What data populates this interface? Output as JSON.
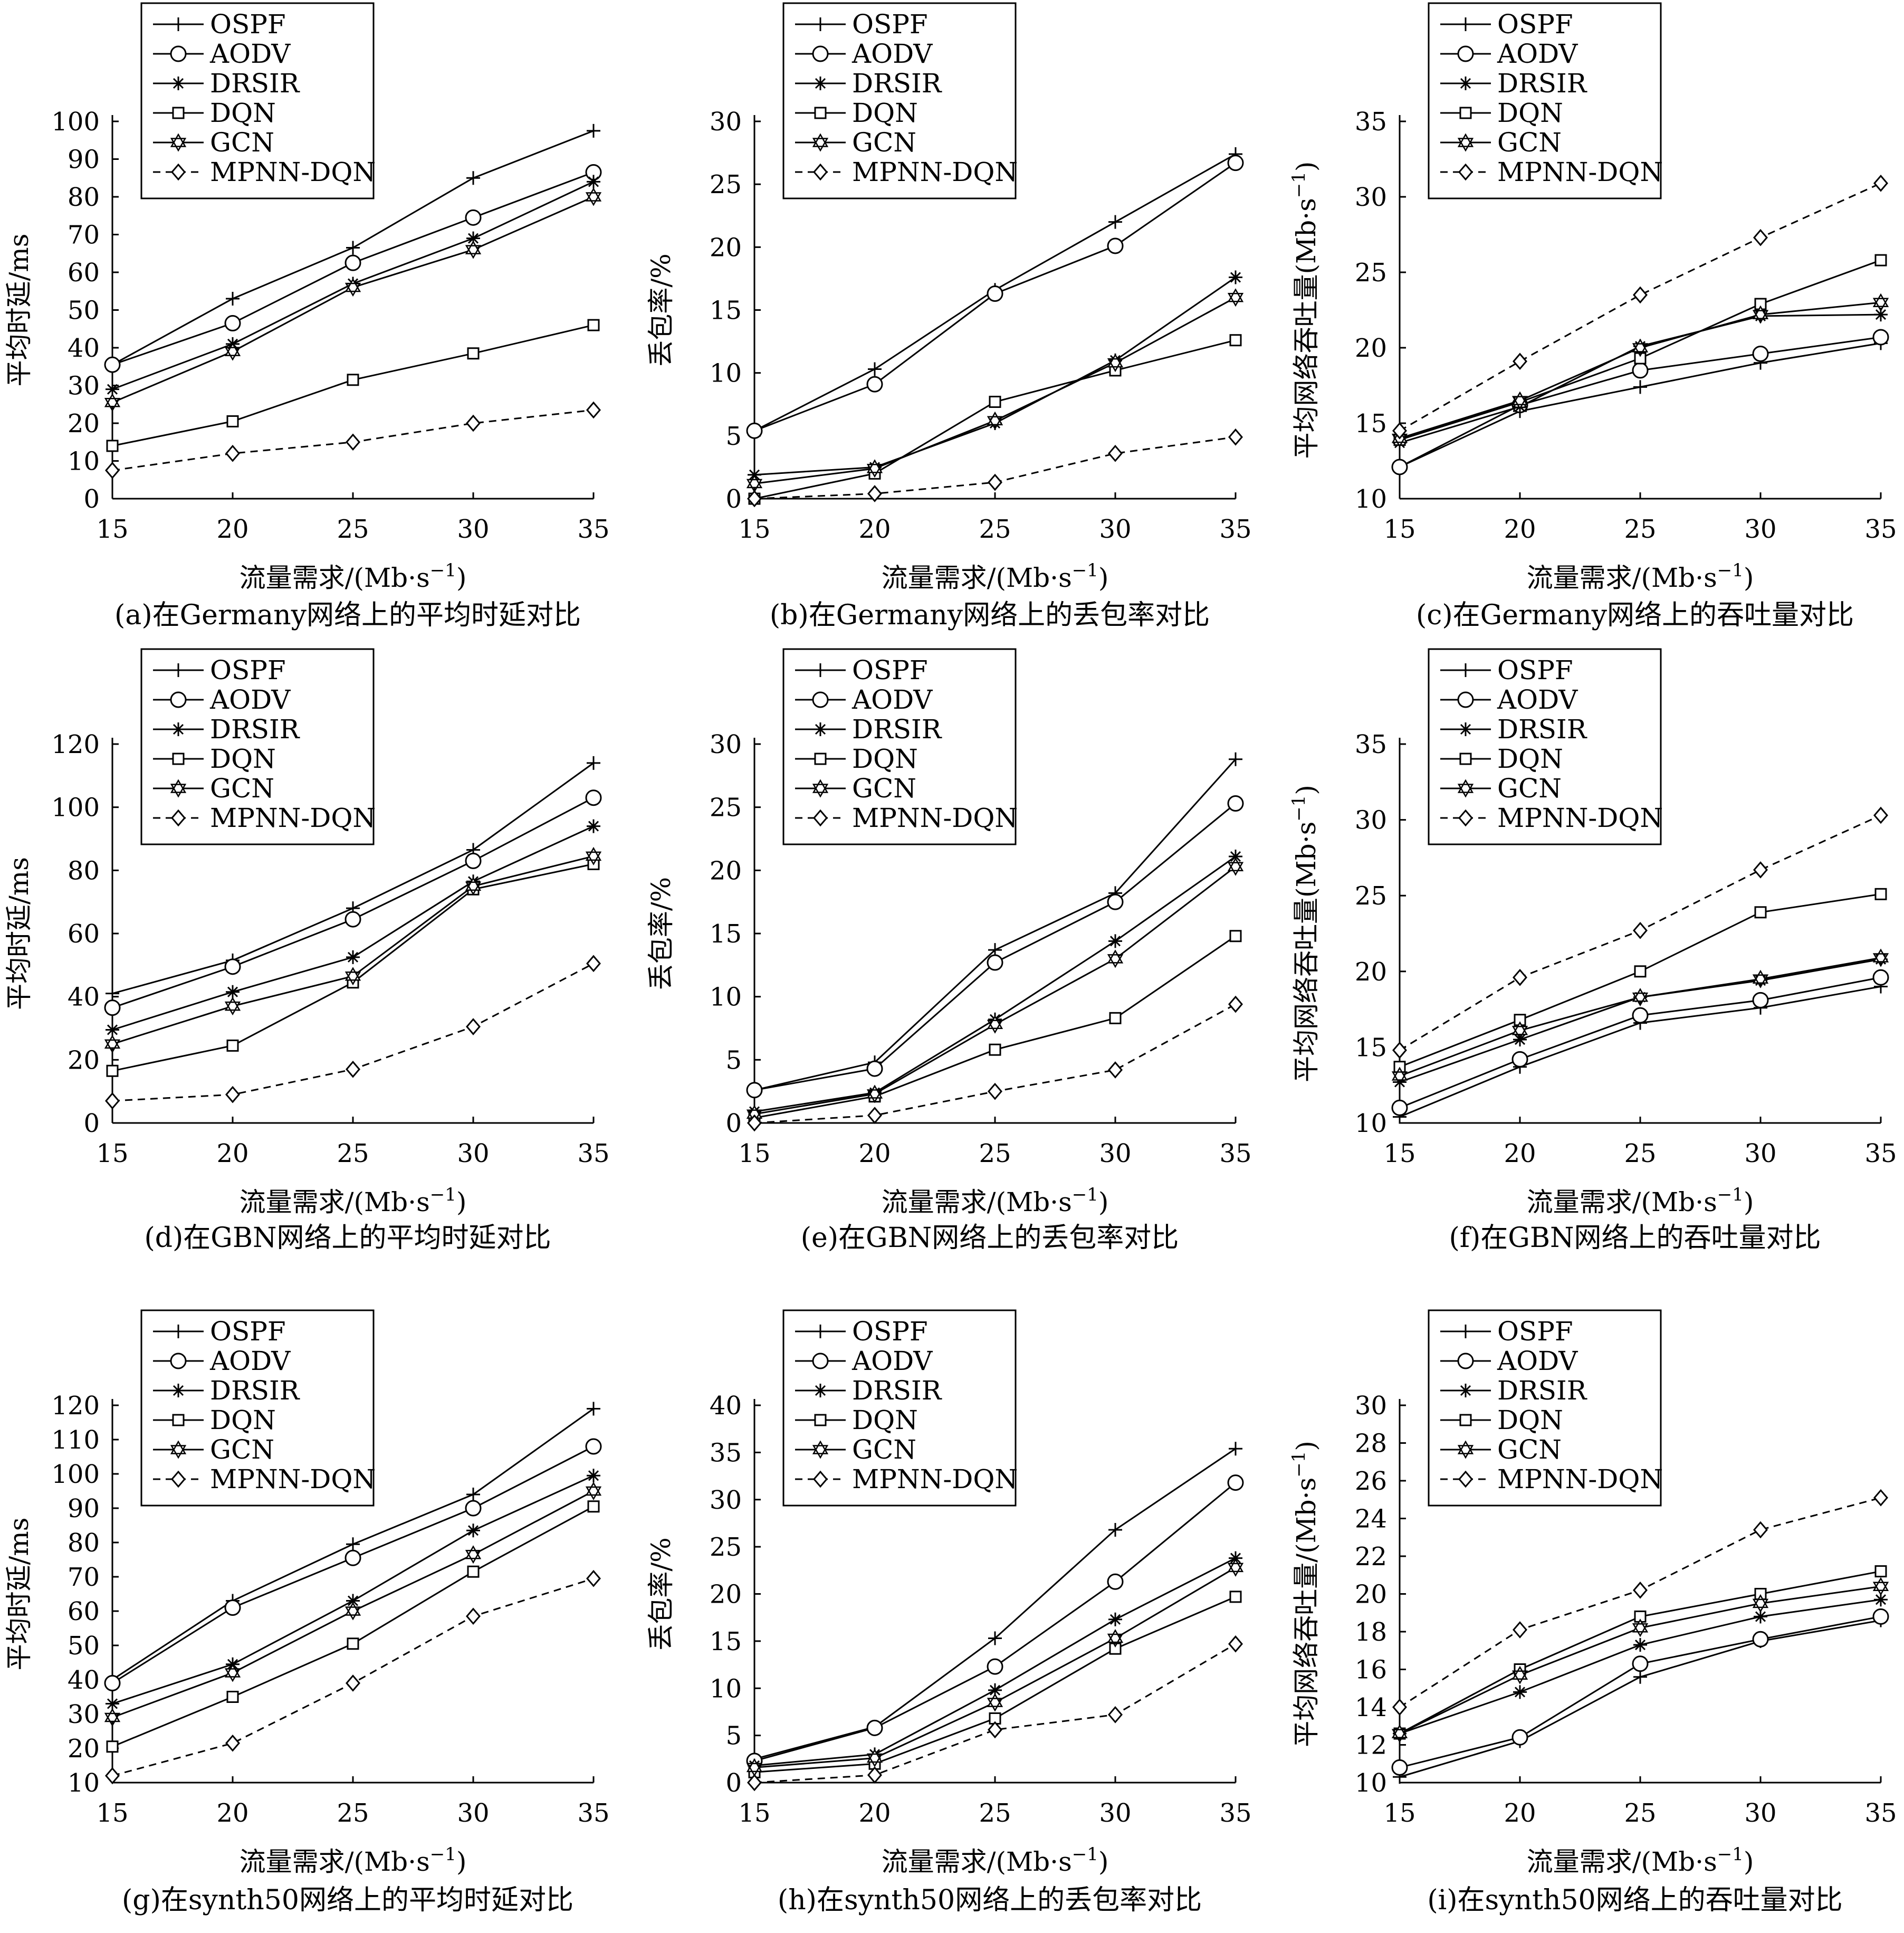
{
  "chart_data": [
    {
      "type": "line",
      "caption": "(a)在Germany网络上的平均时延对比",
      "xlabel": "流量需求/(Mb·s",
      "xlabel_sup": "−1",
      "xlabel_end": ")",
      "ylabel": "平均时延/ms",
      "ylabel_sup": "",
      "ylabel_end": "",
      "x": [
        15,
        20,
        25,
        30,
        35
      ],
      "xlim": [
        15,
        35
      ],
      "ylim": [
        0,
        100
      ],
      "yticks": [
        0,
        10,
        20,
        30,
        40,
        50,
        60,
        70,
        80,
        90,
        100
      ],
      "series": [
        {
          "name": "OSPF",
          "values": [
            35.5,
            53,
            66.5,
            85,
            97.5
          ]
        },
        {
          "name": "AODV",
          "values": [
            35.5,
            46.5,
            62.5,
            74.5,
            86.5
          ]
        },
        {
          "name": "DRSIR",
          "values": [
            29,
            41,
            57,
            69,
            84
          ]
        },
        {
          "name": "DQN",
          "values": [
            14,
            20.5,
            31.5,
            38.5,
            46
          ]
        },
        {
          "name": "GCN",
          "values": [
            25.5,
            39,
            56,
            66,
            80
          ]
        },
        {
          "name": "MPNN-DQN",
          "values": [
            7.5,
            12,
            15,
            20,
            23.5
          ]
        }
      ]
    },
    {
      "type": "line",
      "caption": "(b)在Germany网络上的丢包率对比",
      "xlabel": "流量需求/(Mb·s",
      "xlabel_sup": "−1",
      "xlabel_end": ")",
      "ylabel": "丢包率/%",
      "ylabel_sup": "",
      "ylabel_end": "",
      "x": [
        15,
        20,
        25,
        30,
        35
      ],
      "xlim": [
        15,
        35
      ],
      "ylim": [
        0,
        30
      ],
      "yticks": [
        0,
        5,
        10,
        15,
        20,
        25,
        30
      ],
      "series": [
        {
          "name": "OSPF",
          "values": [
            5.4,
            10.3,
            16.6,
            22,
            27.4
          ]
        },
        {
          "name": "AODV",
          "values": [
            5.4,
            9.1,
            16.3,
            20.1,
            26.7
          ]
        },
        {
          "name": "DRSIR",
          "values": [
            1.9,
            2.5,
            6,
            11,
            17.6
          ]
        },
        {
          "name": "DQN",
          "values": [
            0,
            2,
            7.7,
            10.2,
            12.6
          ]
        },
        {
          "name": "GCN",
          "values": [
            1.2,
            2.4,
            6.2,
            10.8,
            16
          ]
        },
        {
          "name": "MPNN-DQN",
          "values": [
            0,
            0.4,
            1.3,
            3.6,
            4.9
          ]
        }
      ]
    },
    {
      "type": "line",
      "caption": "(c)在Germany网络上的吞吐量对比",
      "xlabel": "流量需求/(Mb·s",
      "xlabel_sup": "−1",
      "xlabel_end": ")",
      "ylabel": "平均网络吞吐量(Mb·s",
      "ylabel_sup": "−1",
      "ylabel_end": ")",
      "x": [
        15,
        20,
        25,
        30,
        35
      ],
      "xlim": [
        15,
        35
      ],
      "ylim": [
        10,
        35
      ],
      "yticks": [
        10,
        15,
        20,
        25,
        30,
        35
      ],
      "series": [
        {
          "name": "OSPF",
          "values": [
            12.1,
            15.8,
            17.4,
            19,
            20.3
          ]
        },
        {
          "name": "AODV",
          "values": [
            12.1,
            16.2,
            18.5,
            19.6,
            20.7
          ]
        },
        {
          "name": "DRSIR",
          "values": [
            13.7,
            16.1,
            20.1,
            22.1,
            22.2
          ]
        },
        {
          "name": "DQN",
          "values": [
            13.9,
            16.4,
            19.3,
            22.9,
            25.8
          ]
        },
        {
          "name": "GCN",
          "values": [
            14,
            16.5,
            20,
            22.2,
            23
          ]
        },
        {
          "name": "MPNN-DQN",
          "values": [
            14.5,
            19.1,
            23.5,
            27.3,
            30.9
          ]
        }
      ]
    },
    {
      "type": "line",
      "caption": "(d)在GBN网络上的平均时延对比",
      "xlabel": "流量需求/(Mb·s",
      "xlabel_sup": "−1",
      "xlabel_end": ")",
      "ylabel": "平均时延/ms",
      "ylabel_sup": "",
      "ylabel_end": "",
      "x": [
        15,
        20,
        25,
        30,
        35
      ],
      "xlim": [
        15,
        35
      ],
      "ylim": [
        0,
        120
      ],
      "yticks": [
        0,
        20,
        40,
        60,
        80,
        100,
        120
      ],
      "series": [
        {
          "name": "OSPF",
          "values": [
            41,
            51.5,
            68,
            86.5,
            114
          ]
        },
        {
          "name": "AODV",
          "values": [
            36.5,
            49.5,
            64.5,
            83,
            103
          ]
        },
        {
          "name": "DRSIR",
          "values": [
            29.5,
            41.5,
            52.5,
            76.5,
            94
          ]
        },
        {
          "name": "DQN",
          "values": [
            16.5,
            24.5,
            44.5,
            74,
            82
          ]
        },
        {
          "name": "GCN",
          "values": [
            25,
            37,
            46.5,
            75,
            84.5
          ]
        },
        {
          "name": "MPNN-DQN",
          "values": [
            7,
            9,
            17,
            30.5,
            50.5
          ]
        }
      ]
    },
    {
      "type": "line",
      "caption": "(e)在GBN网络上的丢包率对比",
      "xlabel": "流量需求/(Mb·s",
      "xlabel_sup": "−1",
      "xlabel_end": ")",
      "ylabel": "丢包率/%",
      "ylabel_sup": "",
      "ylabel_end": "",
      "x": [
        15,
        20,
        25,
        30,
        35
      ],
      "xlim": [
        15,
        35
      ],
      "ylim": [
        0,
        30
      ],
      "yticks": [
        0,
        5,
        10,
        15,
        20,
        25,
        30
      ],
      "series": [
        {
          "name": "OSPF",
          "values": [
            2.6,
            4.8,
            13.7,
            18.2,
            28.8
          ]
        },
        {
          "name": "AODV",
          "values": [
            2.6,
            4.3,
            12.7,
            17.5,
            25.3
          ]
        },
        {
          "name": "DRSIR",
          "values": [
            0.9,
            2.4,
            8.2,
            14.4,
            21.1
          ]
        },
        {
          "name": "DQN",
          "values": [
            0.4,
            2.1,
            5.8,
            8.3,
            14.8
          ]
        },
        {
          "name": "GCN",
          "values": [
            0.7,
            2.3,
            7.8,
            13,
            20.3
          ]
        },
        {
          "name": "MPNN-DQN",
          "values": [
            0,
            0.6,
            2.5,
            4.2,
            9.4
          ]
        }
      ]
    },
    {
      "type": "line",
      "caption": "(f)在GBN网络上的吞吐量对比",
      "xlabel": "流量需求/(Mb·s",
      "xlabel_sup": "−1",
      "xlabel_end": ")",
      "ylabel": "平均网络吞吐量(Mb·s",
      "ylabel_sup": "−1",
      "ylabel_end": ")",
      "x": [
        15,
        20,
        25,
        30,
        35
      ],
      "xlim": [
        15,
        35
      ],
      "ylim": [
        10,
        35
      ],
      "yticks": [
        10,
        15,
        20,
        25,
        30,
        35
      ],
      "series": [
        {
          "name": "OSPF",
          "values": [
            10.4,
            13.7,
            16.6,
            17.6,
            19
          ]
        },
        {
          "name": "AODV",
          "values": [
            11,
            14.2,
            17.1,
            18.1,
            19.6
          ]
        },
        {
          "name": "DRSIR",
          "values": [
            12.7,
            15.5,
            18.3,
            19.4,
            20.8
          ]
        },
        {
          "name": "DQN",
          "values": [
            13.7,
            16.8,
            20,
            23.9,
            25.1
          ]
        },
        {
          "name": "GCN",
          "values": [
            13.1,
            16.1,
            18.3,
            19.5,
            20.9
          ]
        },
        {
          "name": "MPNN-DQN",
          "values": [
            14.8,
            19.6,
            22.7,
            26.7,
            30.3
          ]
        }
      ]
    },
    {
      "type": "line",
      "caption": "(g)在synth50网络上的平均时延对比",
      "xlabel": "流量需求/(Mb·s",
      "xlabel_sup": "−1",
      "xlabel_end": ")",
      "ylabel": "平均时延/ms",
      "ylabel_sup": "",
      "ylabel_end": "",
      "x": [
        15,
        20,
        25,
        30,
        35
      ],
      "xlim": [
        15,
        35
      ],
      "ylim": [
        10,
        120
      ],
      "yticks": [
        10,
        20,
        30,
        40,
        50,
        60,
        70,
        80,
        90,
        100,
        110,
        120
      ],
      "series": [
        {
          "name": "OSPF",
          "values": [
            40,
            63,
            79.5,
            94,
            119
          ]
        },
        {
          "name": "AODV",
          "values": [
            39,
            61,
            75.5,
            90,
            108
          ]
        },
        {
          "name": "DRSIR",
          "values": [
            33,
            44.5,
            63,
            83.5,
            99.5
          ]
        },
        {
          "name": "DQN",
          "values": [
            20.5,
            35,
            50.5,
            71.5,
            90.5
          ]
        },
        {
          "name": "GCN",
          "values": [
            29,
            42,
            60,
            76.5,
            95
          ]
        },
        {
          "name": "MPNN-DQN",
          "values": [
            12,
            21.5,
            39,
            58.5,
            69.5
          ]
        }
      ]
    },
    {
      "type": "line",
      "caption": "(h)在synth50网络上的丢包率对比",
      "xlabel": "流量需求/(Mb·s",
      "xlabel_sup": "−1",
      "xlabel_end": ")",
      "ylabel": "丢包率/%",
      "ylabel_sup": "",
      "ylabel_end": "",
      "x": [
        15,
        20,
        25,
        30,
        35
      ],
      "xlim": [
        15,
        35
      ],
      "ylim": [
        0,
        40
      ],
      "yticks": [
        0,
        5,
        10,
        15,
        20,
        25,
        30,
        35,
        40
      ],
      "series": [
        {
          "name": "OSPF",
          "values": [
            2.5,
            5.9,
            15.3,
            26.8,
            35.4
          ]
        },
        {
          "name": "AODV",
          "values": [
            2.3,
            5.8,
            12.3,
            21.3,
            31.8
          ]
        },
        {
          "name": "DRSIR",
          "values": [
            1.8,
            3,
            9.8,
            17.3,
            23.8
          ]
        },
        {
          "name": "DQN",
          "values": [
            1.1,
            2,
            6.8,
            14.2,
            19.7
          ]
        },
        {
          "name": "GCN",
          "values": [
            1.6,
            2.6,
            8.5,
            15.3,
            22.8
          ]
        },
        {
          "name": "MPNN-DQN",
          "values": [
            0,
            0.8,
            5.6,
            7.2,
            14.7
          ]
        }
      ]
    },
    {
      "type": "line",
      "caption": "(i)在synth50网络上的吞吐量对比",
      "xlabel": "流量需求/(Mb·s",
      "xlabel_sup": "−1",
      "xlabel_end": ")",
      "ylabel": "平均网络吞吐量/(Mb·s",
      "ylabel_sup": "−1",
      "ylabel_end": ")",
      "x": [
        15,
        20,
        25,
        30,
        35
      ],
      "xlim": [
        15,
        35
      ],
      "ylim": [
        10,
        30
      ],
      "yticks": [
        10,
        12,
        14,
        16,
        18,
        20,
        22,
        24,
        26,
        28,
        30
      ],
      "series": [
        {
          "name": "OSPF",
          "values": [
            10.3,
            12.2,
            15.6,
            17.5,
            18.6
          ]
        },
        {
          "name": "AODV",
          "values": [
            10.8,
            12.4,
            16.3,
            17.6,
            18.8
          ]
        },
        {
          "name": "DRSIR",
          "values": [
            12.6,
            14.8,
            17.3,
            18.8,
            19.7
          ]
        },
        {
          "name": "DQN",
          "values": [
            12.6,
            16,
            18.8,
            20,
            21.2
          ]
        },
        {
          "name": "GCN",
          "values": [
            12.6,
            15.7,
            18.2,
            19.5,
            20.4
          ]
        },
        {
          "name": "MPNN-DQN",
          "values": [
            14,
            18.1,
            20.2,
            23.4,
            25.1
          ]
        }
      ]
    }
  ]
}
